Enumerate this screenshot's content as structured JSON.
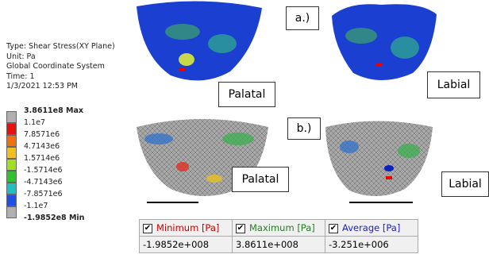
{
  "info": {
    "lines": [
      "Type: Shear Stress(XY Plane)",
      "Unit: Pa",
      "Global Coordinate System",
      "Time: 1",
      "1/3/2021 12:53 PM"
    ]
  },
  "legend": {
    "labels": [
      "3.8611e8 Max",
      "1.1e7",
      "7.8571e6",
      "4.7143e6",
      "1.5714e6",
      "-1.5714e6",
      "-4.7143e6",
      "-7.8571e6",
      "-1.1e7",
      "-1.9852e8 Min"
    ]
  },
  "panels": {
    "a": {
      "label": "a.)",
      "left": "Palatal",
      "right": "Labial"
    },
    "b": {
      "label": "b.)",
      "left": "Palatal",
      "right": "Labial"
    }
  },
  "table": {
    "headers": [
      "Minimum [Pa]",
      "Maximum [Pa]",
      "Average [Pa]"
    ],
    "values": [
      "-1.9852e+008",
      "3.8611e+008",
      "-3.251e+006"
    ]
  }
}
